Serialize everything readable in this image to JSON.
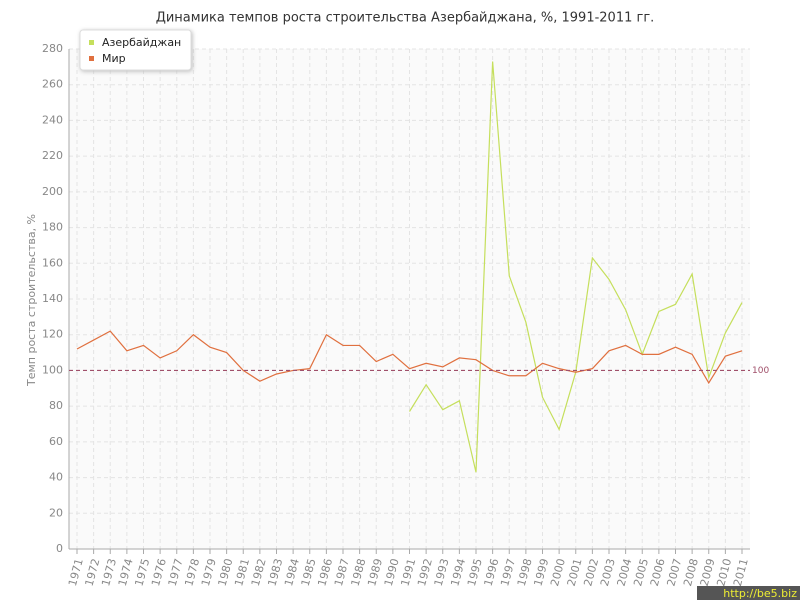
{
  "chart_data": {
    "type": "line",
    "title": "Динамика темпов роста строительства Азербайджана, %, 1991-2011 гг.",
    "y_label": "Темп роста строительства, %",
    "categories": [
      "1971",
      "1972",
      "1973",
      "1974",
      "1975",
      "1976",
      "1977",
      "1978",
      "1979",
      "1980",
      "1981",
      "1982",
      "1983",
      "1984",
      "1985",
      "1986",
      "1987",
      "1988",
      "1989",
      "1990",
      "1991",
      "1992",
      "1993",
      "1994",
      "1995",
      "1996",
      "1997",
      "1998",
      "1999",
      "2000",
      "2001",
      "2002",
      "2003",
      "2004",
      "2005",
      "2006",
      "2007",
      "2008",
      "2009",
      "2010",
      "2011"
    ],
    "series": [
      {
        "name": "Азербайджан",
        "color": "#c5df5c",
        "values": [
          null,
          null,
          null,
          null,
          null,
          null,
          null,
          null,
          null,
          null,
          null,
          null,
          null,
          null,
          null,
          null,
          null,
          null,
          null,
          null,
          77,
          92,
          78,
          83,
          43,
          273,
          153,
          127,
          85,
          67,
          99,
          163,
          151,
          134,
          109,
          133,
          137,
          154,
          96,
          121,
          138
        ]
      },
      {
        "name": "Мир",
        "color": "#e0703f",
        "values": [
          112,
          117,
          122,
          111,
          114,
          107,
          111,
          120,
          113,
          110,
          100,
          94,
          98,
          100,
          101,
          120,
          114,
          114,
          105,
          109,
          101,
          104,
          102,
          107,
          106,
          100,
          97,
          97,
          104,
          101,
          99,
          101,
          111,
          114,
          109,
          109,
          113,
          109,
          93,
          108,
          111
        ]
      }
    ],
    "reference_line": 100,
    "ylim": [
      0,
      280
    ],
    "yticks": [
      0,
      20,
      40,
      60,
      80,
      100,
      120,
      140,
      160,
      180,
      200,
      220,
      240,
      260,
      280
    ],
    "grid": true,
    "legend": "top-left",
    "watermark": "http://be5.biz"
  }
}
